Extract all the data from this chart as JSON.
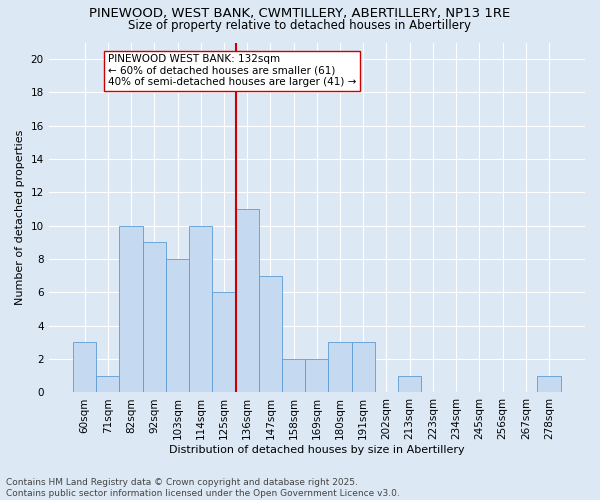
{
  "title_line1": "PINEWOOD, WEST BANK, CWMTILLERY, ABERTILLERY, NP13 1RE",
  "title_line2": "Size of property relative to detached houses in Abertillery",
  "xlabel": "Distribution of detached houses by size in Abertillery",
  "ylabel": "Number of detached properties",
  "categories": [
    "60sqm",
    "71sqm",
    "82sqm",
    "92sqm",
    "103sqm",
    "114sqm",
    "125sqm",
    "136sqm",
    "147sqm",
    "158sqm",
    "169sqm",
    "180sqm",
    "191sqm",
    "202sqm",
    "213sqm",
    "223sqm",
    "234sqm",
    "245sqm",
    "256sqm",
    "267sqm",
    "278sqm"
  ],
  "values": [
    3,
    1,
    10,
    9,
    8,
    10,
    6,
    11,
    7,
    2,
    2,
    3,
    3,
    0,
    1,
    0,
    0,
    0,
    0,
    0,
    1
  ],
  "bar_color": "#c5d9f0",
  "bar_edge_color": "#5b9bd5",
  "vline_color": "#cc0000",
  "vline_x_index": 7,
  "annotation_text": "PINEWOOD WEST BANK: 132sqm\n← 60% of detached houses are smaller (61)\n40% of semi-detached houses are larger (41) →",
  "annotation_box_color": "#ffffff",
  "annotation_box_edge_color": "#cc0000",
  "ylim": [
    0,
    21
  ],
  "yticks": [
    0,
    2,
    4,
    6,
    8,
    10,
    12,
    14,
    16,
    18,
    20
  ],
  "bg_color": "#dce9f5",
  "grid_color": "#ffffff",
  "footer_text": "Contains HM Land Registry data © Crown copyright and database right 2025.\nContains public sector information licensed under the Open Government Licence v3.0.",
  "title_fontsize": 9.5,
  "subtitle_fontsize": 8.5,
  "axis_label_fontsize": 8,
  "tick_fontsize": 7.5,
  "annotation_fontsize": 7.5,
  "footer_fontsize": 6.5
}
